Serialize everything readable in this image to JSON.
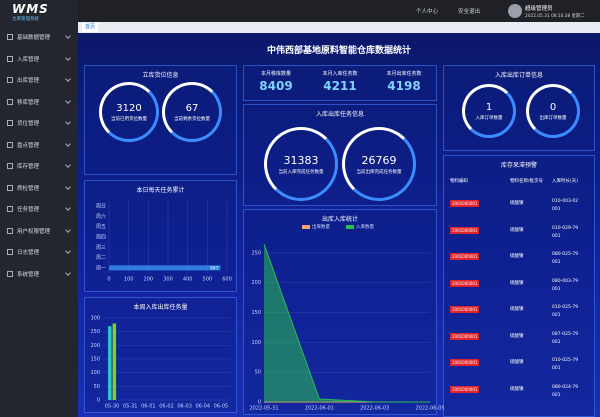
{
  "sidebar": {
    "logo": "WMS",
    "logo_sub": "仓库管理系统",
    "menu": [
      "基础数据管理",
      "入库管理",
      "出库管理",
      "移库管理",
      "货位管理",
      "盘点管理",
      "库存管理",
      "质检管理",
      "任务管理",
      "用户权限管理",
      "日志管理",
      "系统管理"
    ]
  },
  "header": {
    "links": [
      "个人中心",
      "安全退出"
    ],
    "user": "超级管理员",
    "datetime": "2022.05.31 08:10:38 星期二"
  },
  "tab": "首页",
  "title": "中伟西部基地原料智能仓库数据统计",
  "location_info": {
    "title": "立库货位信息",
    "items": [
      {
        "value": 3120,
        "label": "当前已用货位数量"
      },
      {
        "value": 67,
        "label": "当前剩余货位数量"
      }
    ]
  },
  "monthly": [
    {
      "label": "本月移库数量",
      "value": 8409
    },
    {
      "label": "本月入库任务数",
      "value": 4211
    },
    {
      "label": "本月出库任务数",
      "value": 4198
    }
  ],
  "task_info": {
    "title": "入库出库任务信息",
    "items": [
      {
        "value": 31383,
        "label": "当前入库完成任务数量"
      },
      {
        "value": 26769,
        "label": "当前出库完成任务数量"
      }
    ]
  },
  "order_info": {
    "title": "入库出库订单信息",
    "items": [
      {
        "value": 1,
        "label": "入库订单数量"
      },
      {
        "value": 0,
        "label": "出库订单数量"
      }
    ]
  },
  "stock_alert": {
    "title": "库存呆滞预警",
    "columns": [
      "物料编码",
      "物料名称/批次号",
      "入库时长(天)"
    ],
    "rows": [
      [
        "2001000001",
        "硫酸镍",
        "010-003-02 001"
      ],
      [
        "2001000001",
        "硫酸镍",
        "010-029-79 001"
      ],
      [
        "2001000001",
        "硫酸镍",
        "080-025-79 001"
      ],
      [
        "2001000001",
        "硫酸镍",
        "080-003-79 001"
      ],
      [
        "2001000001",
        "硫酸镍",
        "010-025-79 001"
      ],
      [
        "2001000001",
        "硫酸镍",
        "087-025-79 001"
      ],
      [
        "2001000001",
        "硫酸镍",
        "010-025-79 001"
      ],
      [
        "2001000001",
        "硫酸镍",
        "080-024-79 001"
      ]
    ]
  },
  "chart_data": [
    {
      "type": "hbar",
      "title": "本日每天任务累计",
      "categories": [
        "周日",
        "周六",
        "周五",
        "周四",
        "周三",
        "周二",
        "周一"
      ],
      "values": [
        0,
        0,
        0,
        0,
        0,
        0,
        567
      ],
      "color": "#2f7de1",
      "xlim": [
        0,
        600
      ],
      "xticks": [
        0,
        100,
        200,
        300,
        400,
        500,
        600
      ]
    },
    {
      "type": "bar",
      "title": "本周入库出库任务量",
      "categories": [
        "05-30",
        "05-31",
        "06-01",
        "06-02",
        "06-03",
        "06-04",
        "06-05"
      ],
      "series": [
        {
          "color": "#2ec7c9",
          "values": [
            270,
            0,
            0,
            0,
            0,
            0,
            0
          ]
        },
        {
          "color": "#7ed321",
          "values": [
            280,
            0,
            0,
            0,
            0,
            0,
            0
          ]
        }
      ],
      "ylim": [
        0,
        300
      ],
      "yticks": [
        0,
        50,
        100,
        150,
        200,
        250,
        300
      ]
    },
    {
      "type": "line",
      "title": "出库入库统计",
      "categories": [
        "2022-05-31",
        "2022-06-01",
        "2022-06-03",
        "2022-06-05"
      ],
      "series": [
        {
          "name": "出库数量",
          "color": "#f5a46b",
          "values": [
            0,
            0,
            0,
            0
          ]
        },
        {
          "name": "入库数量",
          "color": "#2bbf4e",
          "values": [
            265,
            5,
            0,
            0
          ]
        }
      ],
      "ylim": [
        0,
        275
      ],
      "yticks": [
        0,
        50,
        100,
        150,
        200,
        250
      ]
    }
  ]
}
